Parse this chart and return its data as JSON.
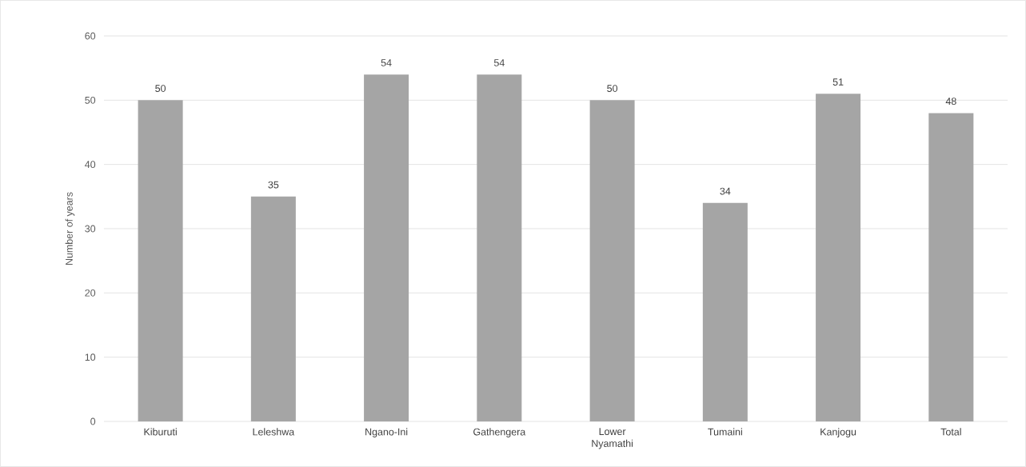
{
  "chart_data": {
    "type": "bar",
    "ylabel": "Number of years",
    "categories": [
      "Kiburuti",
      "Leleshwa",
      "Ngano-Ini",
      "Gathengera",
      "Lower Nyamathi",
      "Tumaini",
      "Kanjogu",
      "Total"
    ],
    "values": [
      50,
      35,
      54,
      54,
      50,
      34,
      51,
      48
    ],
    "color": "#a5a5a5",
    "ylim": [
      0,
      60
    ],
    "yticks": [
      0,
      10,
      20,
      30,
      40,
      50,
      60
    ],
    "grid": "y",
    "data_labels": true
  }
}
